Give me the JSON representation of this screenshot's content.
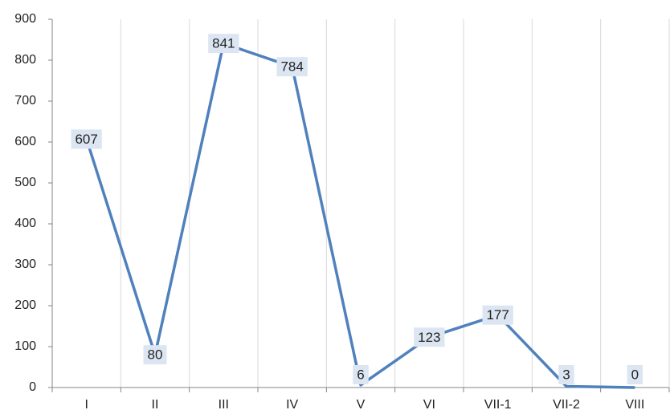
{
  "chart_data": {
    "type": "line",
    "categories": [
      "I",
      "II",
      "III",
      "IV",
      "V",
      "VI",
      "VII-1",
      "VII-2",
      "VIII"
    ],
    "values": [
      607,
      80,
      841,
      784,
      6,
      123,
      177,
      3,
      0
    ],
    "color": "#4f81bd",
    "ylim": [
      0,
      900
    ],
    "yticks": [
      0,
      100,
      200,
      300,
      400,
      500,
      600,
      700,
      800,
      900
    ],
    "grid": true
  }
}
